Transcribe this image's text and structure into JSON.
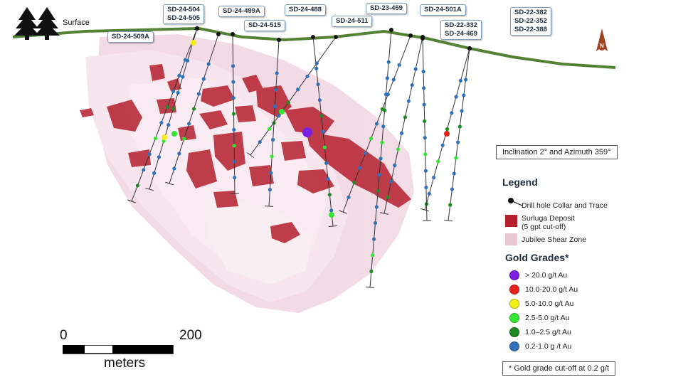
{
  "surface_label": "Surface",
  "north_label": "N",
  "orientation_note": "Inclination 2° and Azimuth 359°",
  "drill_labels": [
    {
      "id": "l1",
      "lines": [
        "SD-24-504",
        "SD-24-505"
      ]
    },
    {
      "id": "l2",
      "lines": [
        "SD-24-509A"
      ]
    },
    {
      "id": "l3",
      "lines": [
        "SD-24-499A"
      ]
    },
    {
      "id": "l4",
      "lines": [
        "SD-24-515"
      ]
    },
    {
      "id": "l5",
      "lines": [
        "SD-24-488"
      ]
    },
    {
      "id": "l6",
      "lines": [
        "SD-24-511"
      ]
    },
    {
      "id": "l7",
      "lines": [
        "SD-23-459"
      ]
    },
    {
      "id": "l8",
      "lines": [
        "SD-24-501A"
      ]
    },
    {
      "id": "l9",
      "lines": [
        "SD-22-332",
        "SD-24-469"
      ]
    },
    {
      "id": "l10",
      "lines": [
        "SD-22-382",
        "SD-22-352",
        "SD-22-388"
      ]
    }
  ],
  "legend": {
    "title": "Legend",
    "drill_hole": "Drill hole Collar and Trace",
    "deposit_line1": "Surluga Deposit",
    "deposit_line2": "(5 gpt cut-off)",
    "shear_zone": "Jubilee Shear Zone",
    "deposit_color": "#b51f2e",
    "shear_color": "#e9c6d4"
  },
  "grades": {
    "title": "Gold Grades*",
    "items": [
      {
        "label": "> 20.0 g/t Au",
        "color": "#7b1fe0"
      },
      {
        "label": "10.0-20.0 g/t Au",
        "color": "#e8201c"
      },
      {
        "label": "5.0-10.0 g/t Au",
        "color": "#f2ee1a"
      },
      {
        "label": "2.5-5.0  g/t Au",
        "color": "#33e633"
      },
      {
        "label": "1.0–2.5 g/t Au",
        "color": "#1f8a24"
      },
      {
        "label": "0.2-1.0 g /t Au",
        "color": "#2f72b8"
      }
    ]
  },
  "cutoff_note": "* Gold grade cut-off at 0.2 g/t",
  "scale": {
    "start": "0",
    "end": "200",
    "unit": "meters"
  },
  "colors": {
    "surface_line": "#548235",
    "trees": "#111111",
    "collar": "#111111"
  }
}
